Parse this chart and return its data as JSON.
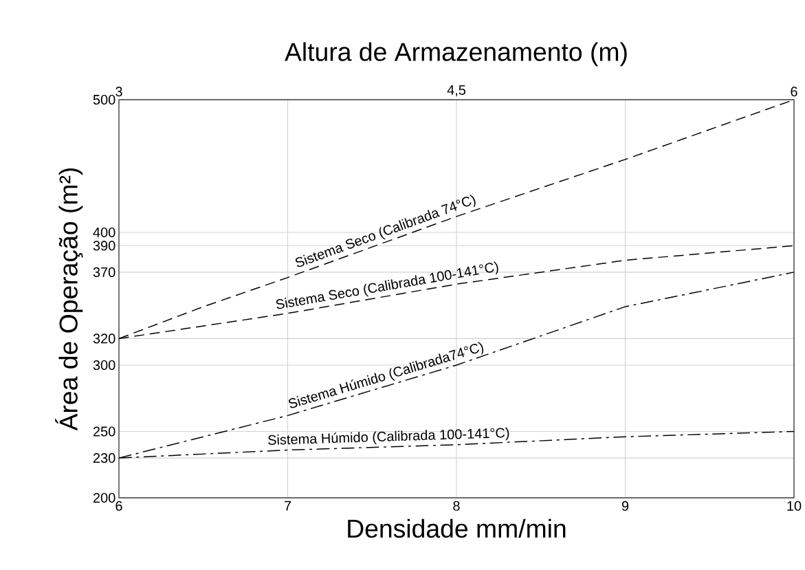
{
  "chart_data": {
    "type": "line",
    "x2label": "Altura de Armazenamento (m)",
    "xlabel": "Densidade mm/min",
    "ylabel": "Área de Operação (m²)",
    "xlim": [
      6,
      10
    ],
    "xticks": [
      6,
      7,
      8,
      9,
      10
    ],
    "x2lim": [
      3,
      6
    ],
    "x2ticks": [
      3,
      {
        "value": 4.5,
        "label": "4,5"
      },
      6
    ],
    "ylim": [
      200,
      500
    ],
    "yticks": [
      200,
      230,
      250,
      300,
      320,
      370,
      390,
      400,
      500
    ],
    "grid": true,
    "legend": false,
    "marker": "none",
    "series": [
      {
        "name": "Sistema Seco (Calibrada 74°C)",
        "color": "#000000",
        "line_style": "dashed",
        "x": [
          6,
          6.5,
          7,
          8,
          9,
          10
        ],
        "values": [
          320,
          344,
          366,
          412,
          455,
          500
        ]
      },
      {
        "name": "Sistema Seco  (Calibrada 100-141°C)",
        "color": "#000000",
        "line_style": "dashed",
        "x": [
          6,
          7,
          8,
          9,
          10
        ],
        "values": [
          320,
          339,
          361,
          379,
          390
        ]
      },
      {
        "name": "Sistema Húmido (Calibrada74°C)",
        "color": "#000000",
        "line_style": "dashdot",
        "x": [
          6,
          7,
          8,
          9,
          10
        ],
        "values": [
          230,
          262,
          300,
          344,
          370
        ]
      },
      {
        "name": "Sistema Húmido (Calibrada 100-141°C)",
        "color": "#000000",
        "line_style": "dashdot",
        "x": [
          6,
          7,
          8,
          9,
          10
        ],
        "values": [
          230,
          236,
          240,
          246,
          250
        ]
      }
    ]
  }
}
